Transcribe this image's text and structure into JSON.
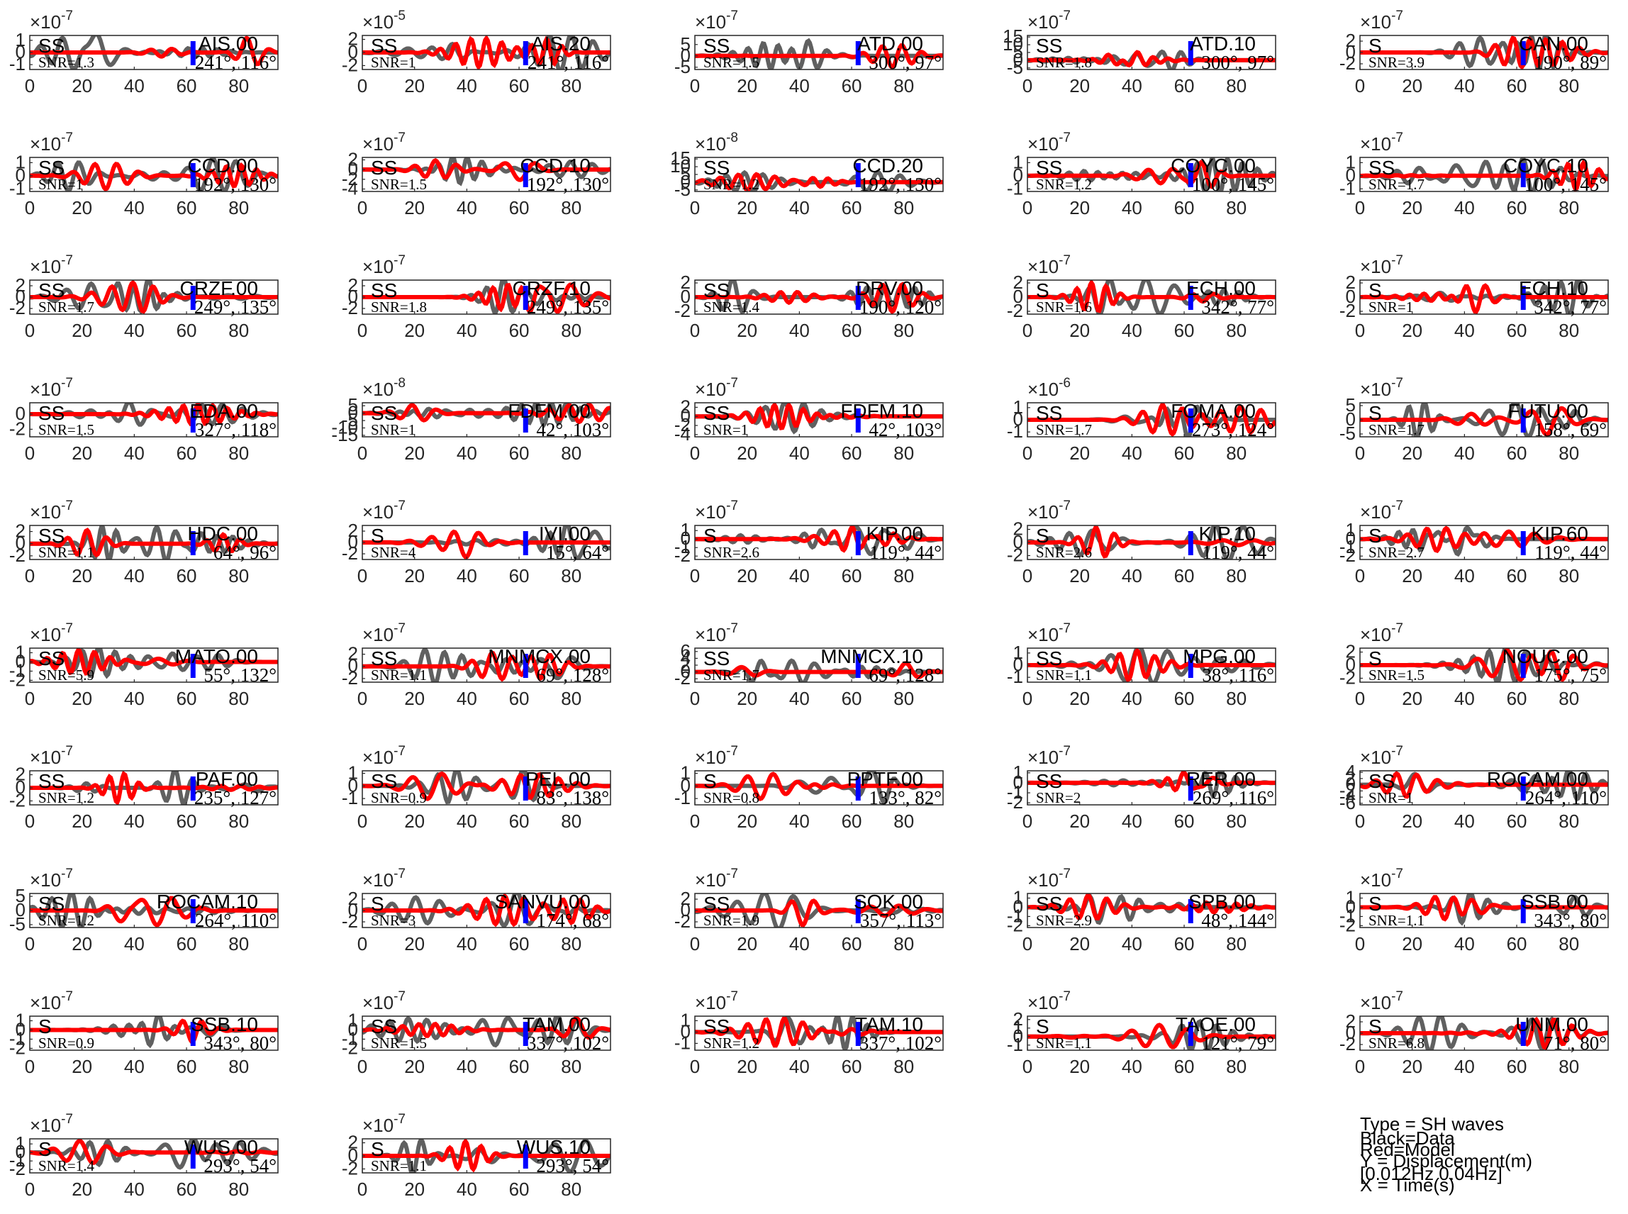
{
  "figure": {
    "legend": {
      "lines": [
        "Type = SH waves",
        "Black=Data",
        "Red=Model",
        "Y = Displacement(m)",
        "[0.012Hz 0.04Hz]",
        "X = Time(s)"
      ]
    },
    "colors": {
      "data": "#606060",
      "model": "#ff0000",
      "marker": "#0000ff",
      "axis": "#262626"
    },
    "x_ticks": [
      0,
      20,
      40,
      60,
      80
    ]
  },
  "chart_data": [
    {
      "type": "line",
      "station": "AIS.00",
      "phase": "SS",
      "exp": "-7",
      "snr": "SNR=1.3",
      "azdist": "241°, 116°",
      "yticks": [
        "1",
        "0",
        "-1"
      ],
      "ylim": [
        -1.4,
        1.4
      ]
    },
    {
      "type": "line",
      "station": "AIS.20",
      "phase": "SS",
      "exp": "-5",
      "snr": "SNR=1",
      "azdist": "241°, 116°",
      "yticks": [
        "2",
        "0",
        "-2"
      ],
      "ylim": [
        -2.6,
        2.6
      ]
    },
    {
      "type": "line",
      "station": "ATD.00",
      "phase": "SS",
      "exp": "-7",
      "snr": "SNR=1.5",
      "azdist": "300°, 97°",
      "yticks": [
        "5",
        "0",
        "-5"
      ],
      "ylim": [
        -6,
        9
      ]
    },
    {
      "type": "line",
      "station": "ATD.10",
      "phase": "SS",
      "exp": "-7",
      "snr": "SNR=1.8",
      "azdist": "300°, 97°",
      "yticks": [
        "15",
        "10",
        "5",
        "0",
        "-5"
      ],
      "ylim": [
        -6,
        16
      ]
    },
    {
      "type": "line",
      "station": "CAN.00",
      "phase": "S",
      "exp": "-7",
      "snr": "SNR=3.9",
      "azdist": "190°, 89°",
      "yticks": [
        "2",
        "0",
        "-2"
      ],
      "ylim": [
        -3,
        3
      ]
    },
    {
      "type": "line",
      "station": "CCD.00",
      "phase": "SS",
      "exp": "-7",
      "snr": "SNR=1",
      "azdist": "192°, 130°",
      "yticks": [
        "1",
        "0",
        "-1"
      ],
      "ylim": [
        -1.2,
        1.4
      ]
    },
    {
      "type": "line",
      "station": "CCD.10",
      "phase": "SS",
      "exp": "-7",
      "snr": "SNR=1.5",
      "azdist": "192°, 130°",
      "yticks": [
        "2",
        "0",
        "-2",
        "-4"
      ],
      "ylim": [
        -4.5,
        2.5
      ]
    },
    {
      "type": "line",
      "station": "CCD.20",
      "phase": "SS",
      "exp": "-8",
      "snr": "SNR=1.2",
      "azdist": "192°, 130°",
      "yticks": [
        "15",
        "10",
        "5",
        "0",
        "-5"
      ],
      "ylim": [
        -6,
        16
      ]
    },
    {
      "type": "line",
      "station": "COYC.00",
      "phase": "SS",
      "exp": "-7",
      "snr": "SNR=1.2",
      "azdist": "100°, 145°",
      "yticks": [
        "1",
        "0",
        "-1"
      ],
      "ylim": [
        -1.2,
        1.4
      ]
    },
    {
      "type": "line",
      "station": "COYC.10",
      "phase": "SS",
      "exp": "-7",
      "snr": "SNR=1.7",
      "azdist": "100°, 145°",
      "yticks": [
        "1",
        "0",
        "-1"
      ],
      "ylim": [
        -1.2,
        1.4
      ]
    },
    {
      "type": "line",
      "station": "CRZF.00",
      "phase": "SS",
      "exp": "-7",
      "snr": "SNR=1.7",
      "azdist": "249°, 135°",
      "yticks": [
        "2",
        "0",
        "-2"
      ],
      "ylim": [
        -3,
        3
      ]
    },
    {
      "type": "line",
      "station": "CRZF.10",
      "phase": "SS",
      "exp": "-7",
      "snr": "SNR=1.8",
      "azdist": "249°, 135°",
      "yticks": [
        "2",
        "0",
        "-2"
      ],
      "ylim": [
        -3,
        3
      ]
    },
    {
      "type": "line",
      "station": "DRV.00",
      "phase": "SS",
      "exp": "",
      "snr": "SNR=1.4",
      "azdist": "190°, 120°",
      "yticks": [
        "2",
        "0",
        "-2"
      ],
      "ylim": [
        -2.4,
        2.4
      ]
    },
    {
      "type": "line",
      "station": "ECH.00",
      "phase": "S",
      "exp": "-7",
      "snr": "SNR=1.6",
      "azdist": "342°, 77°",
      "yticks": [
        "2",
        "0",
        "-2"
      ],
      "ylim": [
        -2.4,
        2.4
      ]
    },
    {
      "type": "line",
      "station": "ECH.10",
      "phase": "S",
      "exp": "-7",
      "snr": "SNR=1",
      "azdist": "342°, 77°",
      "yticks": [
        "2",
        "0",
        "-2"
      ],
      "ylim": [
        -2.4,
        2.4
      ]
    },
    {
      "type": "line",
      "station": "EDA.00",
      "phase": "SS",
      "exp": "-7",
      "snr": "SNR=1.5",
      "azdist": "327°, 118°",
      "yticks": [
        "0",
        "-2"
      ],
      "ylim": [
        -3,
        1.5
      ]
    },
    {
      "type": "line",
      "station": "FDFM.00",
      "phase": "SS",
      "exp": "-8",
      "snr": "SNR=1",
      "azdist": "42°, 103°",
      "yticks": [
        "5",
        "0",
        "-5",
        "-10",
        "-15"
      ],
      "ylim": [
        -16,
        7
      ]
    },
    {
      "type": "line",
      "station": "FDFM.10",
      "phase": "SS",
      "exp": "-7",
      "snr": "SNR=1",
      "azdist": "42°, 103°",
      "yticks": [
        "2",
        "0",
        "-2",
        "-4"
      ],
      "ylim": [
        -4.5,
        3
      ]
    },
    {
      "type": "line",
      "station": "FOMA.00",
      "phase": "SS",
      "exp": "-6",
      "snr": "SNR=1.7",
      "azdist": "273°, 124°",
      "yticks": [
        "1",
        "0",
        "-1"
      ],
      "ylim": [
        -1.4,
        1.4
      ]
    },
    {
      "type": "line",
      "station": "FUTU.00",
      "phase": "S",
      "exp": "-7",
      "snr": "SNR=1.7",
      "azdist": "158°, 69°",
      "yticks": [
        "5",
        "0",
        "-5"
      ],
      "ylim": [
        -6,
        6
      ]
    },
    {
      "type": "line",
      "station": "HDC.00",
      "phase": "SS",
      "exp": "-7",
      "snr": "SNR=1.1",
      "azdist": "64°, 96°",
      "yticks": [
        "2",
        "0",
        "-2"
      ],
      "ylim": [
        -2.6,
        3
      ]
    },
    {
      "type": "line",
      "station": "IVI.00",
      "phase": "S",
      "exp": "-7",
      "snr": "SNR=4",
      "azdist": "15°, 64°",
      "yticks": [
        "2",
        "0",
        "-2"
      ],
      "ylim": [
        -3,
        3
      ]
    },
    {
      "type": "line",
      "station": "KIP.00",
      "phase": "S",
      "exp": "-7",
      "snr": "SNR=2.6",
      "azdist": "119°, 44°",
      "yticks": [
        "1",
        "0",
        "-1",
        "-2"
      ],
      "ylim": [
        -2.4,
        1.6
      ]
    },
    {
      "type": "line",
      "station": "KIP.10",
      "phase": "S",
      "exp": "-7",
      "snr": "SNR=2.6",
      "azdist": "119°, 44°",
      "yticks": [
        "2",
        "0",
        "-2"
      ],
      "ylim": [
        -2.6,
        2.6
      ]
    },
    {
      "type": "line",
      "station": "KIP.60",
      "phase": "S",
      "exp": "-7",
      "snr": "SNR=2.7",
      "azdist": "119°, 44°",
      "yticks": [
        "1",
        "0",
        "-1",
        "-2"
      ],
      "ylim": [
        -2.4,
        1.6
      ]
    },
    {
      "type": "line",
      "station": "MATO.00",
      "phase": "SS",
      "exp": "-7",
      "snr": "SNR=5.9",
      "azdist": "55°, 132°",
      "yticks": [
        "1",
        "0",
        "-1",
        "-2"
      ],
      "ylim": [
        -2.2,
        1.5
      ]
    },
    {
      "type": "line",
      "station": "MNMCX.00",
      "phase": "SS",
      "exp": "-7",
      "snr": "SNR=1.1",
      "azdist": "69°, 128°",
      "yticks": [
        "2",
        "0",
        "-2"
      ],
      "ylim": [
        -2.6,
        3
      ]
    },
    {
      "type": "line",
      "station": "MNMCX.10",
      "phase": "SS",
      "exp": "-7",
      "snr": "SNR=1.7",
      "azdist": "69°, 128°",
      "yticks": [
        "6",
        "4",
        "2",
        "0",
        "-2"
      ],
      "ylim": [
        -3,
        7
      ]
    },
    {
      "type": "line",
      "station": "MPG.00",
      "phase": "SS",
      "exp": "-7",
      "snr": "SNR=1.1",
      "azdist": "38°, 116°",
      "yticks": [
        "1",
        "0",
        "-1"
      ],
      "ylim": [
        -1.4,
        1.4
      ]
    },
    {
      "type": "line",
      "station": "NOUC.00",
      "phase": "S",
      "exp": "-7",
      "snr": "SNR=1.5",
      "azdist": "175°, 75°",
      "yticks": [
        "2",
        "0",
        "-2"
      ],
      "ylim": [
        -2.6,
        2.6
      ]
    },
    {
      "type": "line",
      "station": "PAF.00",
      "phase": "SS",
      "exp": "-7",
      "snr": "SNR=1.2",
      "azdist": "235°, 127°",
      "yticks": [
        "2",
        "0",
        "-2"
      ],
      "ylim": [
        -2.6,
        2.6
      ]
    },
    {
      "type": "line",
      "station": "PEL.00",
      "phase": "SS",
      "exp": "-7",
      "snr": "SNR=0.9",
      "azdist": "83°, 138°",
      "yticks": [
        "1",
        "0",
        "-1"
      ],
      "ylim": [
        -1.5,
        1.2
      ]
    },
    {
      "type": "line",
      "station": "PPTF.00",
      "phase": "S",
      "exp": "-7",
      "snr": "SNR=0.8",
      "azdist": "133°, 82°",
      "yticks": [
        "1",
        "0",
        "-1"
      ],
      "ylim": [
        -1.5,
        1.2
      ]
    },
    {
      "type": "line",
      "station": "RER.00",
      "phase": "SS",
      "exp": "-7",
      "snr": "SNR=2",
      "azdist": "269°, 116°",
      "yticks": [
        "1",
        "0",
        "-1",
        "-2"
      ],
      "ylim": [
        -2.2,
        1.2
      ]
    },
    {
      "type": "line",
      "station": "ROCAM.00",
      "phase": "SS",
      "exp": "-7",
      "snr": "SNR=1",
      "azdist": "264°, 110°",
      "yticks": [
        "4",
        "2",
        "0",
        "-2",
        "-4",
        "-6"
      ],
      "ylim": [
        -6.5,
        4.5
      ]
    },
    {
      "type": "line",
      "station": "ROCAM.10",
      "phase": "SS",
      "exp": "-7",
      "snr": "SNR=1.2",
      "azdist": "264°, 110°",
      "yticks": [
        "5",
        "0",
        "-5"
      ],
      "ylim": [
        -6,
        6
      ]
    },
    {
      "type": "line",
      "station": "SANVU.00",
      "phase": "S",
      "exp": "-7",
      "snr": "SNR=3",
      "azdist": "174°, 68°",
      "yticks": [
        "2",
        "0",
        "-2"
      ],
      "ylim": [
        -3,
        3
      ]
    },
    {
      "type": "line",
      "station": "SOK.00",
      "phase": "SS",
      "exp": "-7",
      "snr": "SNR=1.9",
      "azdist": "357°, 113°",
      "yticks": [
        "2",
        "0",
        "-2"
      ],
      "ylim": [
        -3,
        3
      ]
    },
    {
      "type": "line",
      "station": "SPB.00",
      "phase": "SS",
      "exp": "-7",
      "snr": "SNR=2.9",
      "azdist": "48°, 144°",
      "yticks": [
        "1",
        "0",
        "-1",
        "-2"
      ],
      "ylim": [
        -2.2,
        1.5
      ]
    },
    {
      "type": "line",
      "station": "SSB.00",
      "phase": "S",
      "exp": "-7",
      "snr": "SNR=1.1",
      "azdist": "343°, 80°",
      "yticks": [
        "1",
        "0",
        "-1",
        "-2"
      ],
      "ylim": [
        -2.2,
        1.5
      ]
    },
    {
      "type": "line",
      "station": "SSB.10",
      "phase": "S",
      "exp": "-7",
      "snr": "SNR=0.9",
      "azdist": "343°, 80°",
      "yticks": [
        "1",
        "0",
        "-1",
        "-2"
      ],
      "ylim": [
        -2.2,
        1.5
      ]
    },
    {
      "type": "line",
      "station": "TAM.00",
      "phase": "SS",
      "exp": "-7",
      "snr": "SNR=1.5",
      "azdist": "337°, 102°",
      "yticks": [
        "1",
        "0",
        "-1",
        "-2"
      ],
      "ylim": [
        -2.2,
        1.5
      ]
    },
    {
      "type": "line",
      "station": "TAM.10",
      "phase": "SS",
      "exp": "-7",
      "snr": "SNR=1.2",
      "azdist": "337°, 102°",
      "yticks": [
        "1",
        "0",
        "-1"
      ],
      "ylim": [
        -1.6,
        1.4
      ]
    },
    {
      "type": "line",
      "station": "TAOE.00",
      "phase": "S",
      "exp": "-7",
      "snr": "SNR=1.1",
      "azdist": "121°, 79°",
      "yticks": [
        "2",
        "1",
        "0",
        "-1"
      ],
      "ylim": [
        -1.6,
        2.4
      ]
    },
    {
      "type": "line",
      "station": "UNM.00",
      "phase": "S",
      "exp": "-7",
      "snr": "SNR=6.8",
      "azdist": "71°, 80°",
      "yticks": [
        "2",
        "0",
        "-2"
      ],
      "ylim": [
        -3,
        3
      ]
    },
    {
      "type": "line",
      "station": "WUS.00",
      "phase": "S",
      "exp": "-7",
      "snr": "SNR=1.4",
      "azdist": "293°, 54°",
      "yticks": [
        "1",
        "0",
        "-1",
        "-2"
      ],
      "ylim": [
        -2.4,
        1.6
      ]
    },
    {
      "type": "line",
      "station": "WUS.10",
      "phase": "S",
      "exp": "-7",
      "snr": "SNR=1.1",
      "azdist": "293°, 54°",
      "yticks": [
        "2",
        "0",
        "-2"
      ],
      "ylim": [
        -2.6,
        2.6
      ]
    }
  ]
}
